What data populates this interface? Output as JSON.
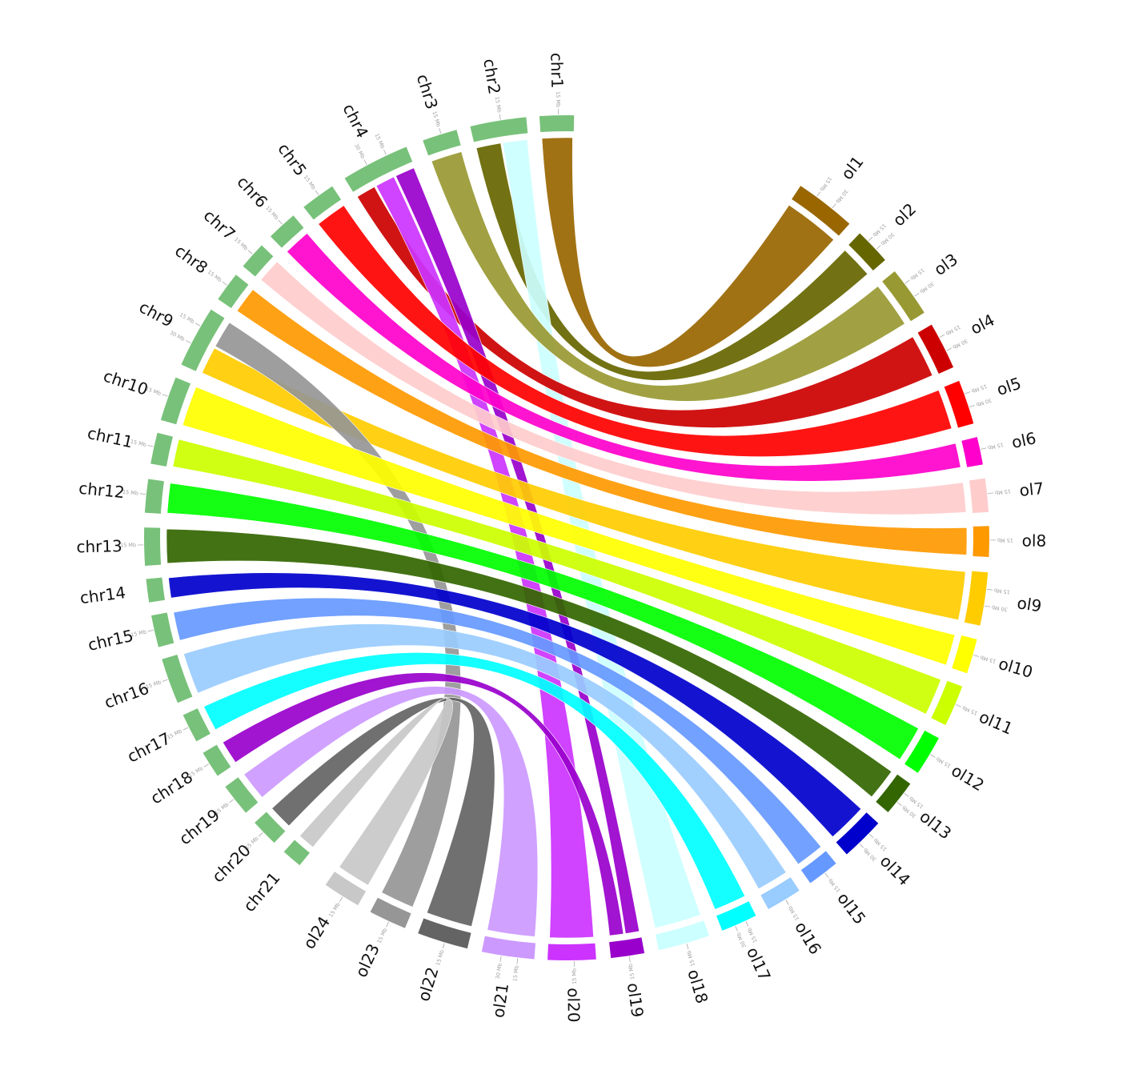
{
  "tick_unit": "Mb",
  "tick_step": 15,
  "colors": {
    "chr_block": "#78c17a",
    "background": "#ffffff",
    "tick": "#a8a8a8"
  },
  "chromosomes": [
    {
      "name": "chr1",
      "group": "chr",
      "ticks": [
        15
      ]
    },
    {
      "name": "chr2",
      "group": "chr",
      "ticks": [
        15
      ]
    },
    {
      "name": "chr3",
      "group": "chr",
      "ticks": [
        15
      ]
    },
    {
      "name": "chr4",
      "group": "chr",
      "ticks": [
        15,
        30
      ]
    },
    {
      "name": "chr5",
      "group": "chr",
      "ticks": [
        15
      ]
    },
    {
      "name": "chr6",
      "group": "chr",
      "ticks": [
        15
      ]
    },
    {
      "name": "chr7",
      "group": "chr",
      "ticks": [
        15
      ]
    },
    {
      "name": "chr8",
      "group": "chr",
      "ticks": [
        15
      ]
    },
    {
      "name": "chr9",
      "group": "chr",
      "ticks": [
        15,
        30
      ]
    },
    {
      "name": "chr10",
      "group": "chr",
      "ticks": [
        15
      ]
    },
    {
      "name": "chr11",
      "group": "chr",
      "ticks": [
        15
      ]
    },
    {
      "name": "chr12",
      "group": "chr",
      "ticks": [
        15
      ]
    },
    {
      "name": "chr13",
      "group": "chr",
      "ticks": [
        15
      ]
    },
    {
      "name": "chr14",
      "group": "chr",
      "ticks": []
    },
    {
      "name": "chr15",
      "group": "chr",
      "ticks": [
        15
      ]
    },
    {
      "name": "chr16",
      "group": "chr",
      "ticks": [
        15
      ]
    },
    {
      "name": "chr17",
      "group": "chr",
      "ticks": [
        15
      ]
    },
    {
      "name": "chr18",
      "group": "chr",
      "ticks": [
        15
      ]
    },
    {
      "name": "chr19",
      "group": "chr",
      "ticks": [
        15
      ]
    },
    {
      "name": "chr20",
      "group": "chr",
      "ticks": [
        15
      ]
    },
    {
      "name": "chr21",
      "group": "chr",
      "ticks": []
    },
    {
      "name": "ol24",
      "group": "ol",
      "color": "#c8c8c8",
      "ticks": [
        15
      ]
    },
    {
      "name": "ol23",
      "group": "ol",
      "color": "#969696",
      "ticks": [
        15
      ]
    },
    {
      "name": "ol22",
      "group": "ol",
      "color": "#646464",
      "ticks": [
        15
      ]
    },
    {
      "name": "ol21",
      "group": "ol",
      "color": "#cc99ff",
      "ticks": [
        15,
        30
      ]
    },
    {
      "name": "ol20",
      "group": "ol",
      "color": "#cc33ff",
      "ticks": [
        15
      ]
    },
    {
      "name": "ol19",
      "group": "ol",
      "color": "#9900cc",
      "ticks": [
        15
      ]
    },
    {
      "name": "ol18",
      "group": "ol",
      "color": "#ccffff",
      "ticks": [
        15
      ]
    },
    {
      "name": "ol17",
      "group": "ol",
      "color": "#00ffff",
      "ticks": [
        15,
        30
      ]
    },
    {
      "name": "ol16",
      "group": "ol",
      "color": "#99ccff",
      "ticks": [
        15
      ]
    },
    {
      "name": "ol15",
      "group": "ol",
      "color": "#6699ff",
      "ticks": [
        15
      ]
    },
    {
      "name": "ol14",
      "group": "ol",
      "color": "#0000cc",
      "ticks": [
        15,
        30
      ]
    },
    {
      "name": "ol13",
      "group": "ol",
      "color": "#336600",
      "ticks": [
        15,
        30
      ]
    },
    {
      "name": "ol12",
      "group": "ol",
      "color": "#00ff00",
      "ticks": [
        15
      ]
    },
    {
      "name": "ol11",
      "group": "ol",
      "color": "#ccff00",
      "ticks": [
        15
      ]
    },
    {
      "name": "ol10",
      "group": "ol",
      "color": "#ffff00",
      "ticks": [
        15
      ]
    },
    {
      "name": "ol9",
      "group": "ol",
      "color": "#ffcc00",
      "ticks": [
        15,
        30
      ]
    },
    {
      "name": "ol8",
      "group": "ol",
      "color": "#ff9900",
      "ticks": [
        15
      ]
    },
    {
      "name": "ol7",
      "group": "ol",
      "color": "#ffcccc",
      "ticks": [
        15
      ]
    },
    {
      "name": "ol6",
      "group": "ol",
      "color": "#ff00cc",
      "ticks": [
        15
      ]
    },
    {
      "name": "ol5",
      "group": "ol",
      "color": "#ff0000",
      "ticks": [
        15,
        30
      ]
    },
    {
      "name": "ol4",
      "group": "ol",
      "color": "#cc0000",
      "ticks": [
        15,
        30
      ]
    },
    {
      "name": "ol3",
      "group": "ol",
      "color": "#999933",
      "ticks": [
        15,
        30
      ]
    },
    {
      "name": "ol2",
      "group": "ol",
      "color": "#666600",
      "ticks": [
        15,
        30
      ]
    },
    {
      "name": "ol1",
      "group": "ol",
      "color": "#996600",
      "ticks": [
        15,
        30
      ]
    }
  ],
  "links": [
    {
      "from": "chr1",
      "to": "ol1"
    },
    {
      "from": "chr2",
      "to": "ol2"
    },
    {
      "from": "chr2",
      "to": "ol18"
    },
    {
      "from": "chr3",
      "to": "ol3"
    },
    {
      "from": "chr4",
      "to": "ol4"
    },
    {
      "from": "chr4",
      "to": "ol20"
    },
    {
      "from": "chr4",
      "to": "ol19"
    },
    {
      "from": "chr5",
      "to": "ol5"
    },
    {
      "from": "chr6",
      "to": "ol6"
    },
    {
      "from": "chr7",
      "to": "ol7"
    },
    {
      "from": "chr8",
      "to": "ol8"
    },
    {
      "from": "chr9",
      "to": "ol9"
    },
    {
      "from": "chr9",
      "to": "ol23"
    },
    {
      "from": "chr10",
      "to": "ol10"
    },
    {
      "from": "chr11",
      "to": "ol11"
    },
    {
      "from": "chr12",
      "to": "ol12"
    },
    {
      "from": "chr13",
      "to": "ol13"
    },
    {
      "from": "chr14",
      "to": "ol14"
    },
    {
      "from": "chr15",
      "to": "ol15"
    },
    {
      "from": "chr16",
      "to": "ol16"
    },
    {
      "from": "chr17",
      "to": "ol17"
    },
    {
      "from": "chr18",
      "to": "ol19"
    },
    {
      "from": "chr19",
      "to": "ol21"
    },
    {
      "from": "chr20",
      "to": "ol22"
    },
    {
      "from": "chr21",
      "to": "ol24"
    }
  ]
}
